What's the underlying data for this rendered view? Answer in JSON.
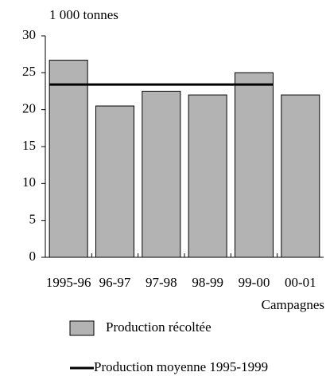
{
  "chart_data": {
    "type": "bar",
    "y_label": "1 000 tonnes",
    "x_label": "Campagnes",
    "categories": [
      "1995-96",
      "96-97",
      "97-98",
      "98-99",
      "99-00",
      "00-01"
    ],
    "series": [
      {
        "name": "Production récoltée",
        "type": "bar",
        "color": "#b3b3b3",
        "values": [
          26.7,
          20.5,
          22.5,
          22.0,
          25.0,
          22.0
        ]
      },
      {
        "name": "Production moyenne 1995-1999",
        "type": "line",
        "color": "#000000",
        "values": [
          23.4,
          23.4,
          23.4,
          23.4,
          23.4,
          null
        ]
      }
    ],
    "ylim": [
      0,
      30
    ],
    "yticks": [
      0,
      5,
      10,
      15,
      20,
      25,
      30
    ]
  }
}
